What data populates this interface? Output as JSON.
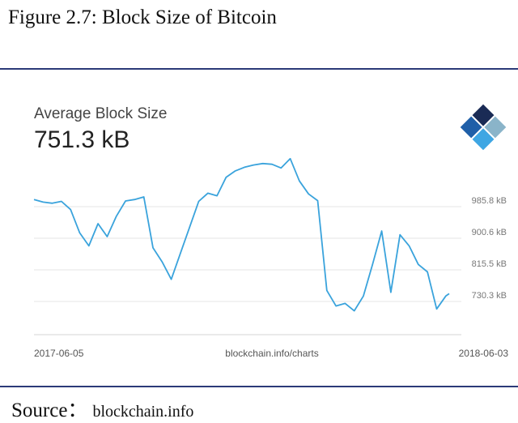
{
  "figure": {
    "title": "Figure 2.7: Block Size of Bitcoin",
    "source_label": "Source",
    "source_colon": "：",
    "source_value": "blockchain.info"
  },
  "card": {
    "metric_name": "Average Block Size",
    "metric_value": "751.3 kB",
    "credit": "blockchain.info/charts"
  },
  "logo": {
    "icon": "blockchain-logo-icon",
    "colors": [
      "#1a2b55",
      "#1f5fa8",
      "#3ea6e3",
      "#8ab4c9"
    ]
  },
  "chart_data": {
    "type": "line",
    "title": "Average Block Size",
    "ylabel": "",
    "xlabel": "",
    "x_start_label": "2017-06-05",
    "x_end_label": "2018-06-03",
    "y_ticks": [
      985.8,
      900.6,
      815.5,
      730.3
    ],
    "y_tick_labels": [
      "985.8 kB",
      "900.6 kB",
      "815.5 kB",
      "730.3 kB"
    ],
    "ylim": [
      690,
      1150
    ],
    "line_color": "#3aa3dc",
    "grid": true,
    "series": [
      {
        "x": [
          "2017-06-05",
          "2017-06-13",
          "2017-06-21",
          "2017-06-29",
          "2017-07-07",
          "2017-07-15",
          "2017-07-23",
          "2017-07-31",
          "2017-08-08",
          "2017-08-16",
          "2017-08-24",
          "2017-09-01",
          "2017-09-09",
          "2017-09-17",
          "2017-09-25",
          "2017-10-03",
          "2017-10-11",
          "2017-10-19",
          "2017-10-27",
          "2017-11-04",
          "2017-11-12",
          "2017-11-20",
          "2017-11-28",
          "2017-12-06",
          "2017-12-14",
          "2017-12-22",
          "2017-12-30",
          "2018-01-07",
          "2018-01-15",
          "2018-01-23",
          "2018-01-31",
          "2018-02-08",
          "2018-02-16",
          "2018-02-24",
          "2018-03-04",
          "2018-03-12",
          "2018-03-20",
          "2018-03-28",
          "2018-04-05",
          "2018-04-13",
          "2018-04-21",
          "2018-04-29",
          "2018-05-07",
          "2018-05-15",
          "2018-05-23",
          "2018-05-31",
          "2018-06-03"
        ],
        "values": [
          1005,
          998,
          995,
          1000,
          978,
          915,
          880,
          940,
          905,
          960,
          1001,
          1005,
          1012,
          875,
          837,
          790,
          860,
          930,
          1000,
          1022,
          1015,
          1065,
          1082,
          1092,
          1098,
          1102,
          1100,
          1090,
          1115,
          1055,
          1020,
          1002,
          760,
          718,
          725,
          705,
          745,
          830,
          920,
          755,
          910,
          880,
          830,
          810,
          710,
          745,
          751.3
        ]
      }
    ]
  }
}
